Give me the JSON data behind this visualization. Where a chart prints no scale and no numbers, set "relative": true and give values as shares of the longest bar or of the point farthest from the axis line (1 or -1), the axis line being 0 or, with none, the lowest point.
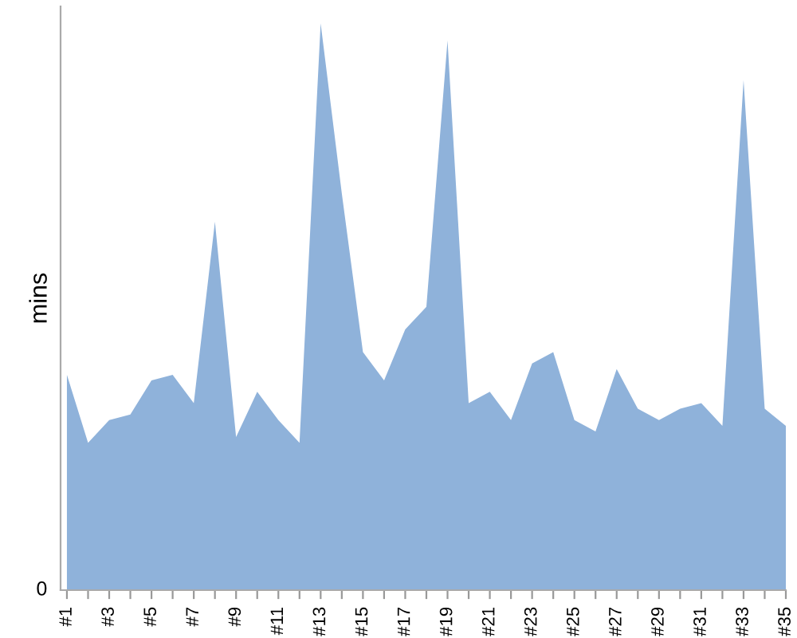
{
  "chart_data": {
    "type": "area",
    "ylabel": "mins",
    "relative": true,
    "color": "#8fb2da",
    "categories": [
      "#1",
      null,
      "#3",
      null,
      "#5",
      null,
      "#7",
      null,
      "#9",
      null,
      "#11",
      null,
      "#13",
      null,
      "#15",
      null,
      "#17",
      null,
      "#19",
      null,
      "#21",
      null,
      "#23",
      null,
      "#25",
      null,
      "#27",
      null,
      "#29",
      null,
      "#31",
      null,
      "#33",
      null,
      "#35"
    ],
    "values": [
      0.38,
      0.26,
      0.3,
      0.31,
      0.37,
      0.38,
      0.33,
      0.65,
      0.27,
      0.35,
      0.3,
      0.26,
      1,
      0.7,
      0.42,
      0.37,
      0.46,
      0.5,
      0.97,
      0.33,
      0.35,
      0.3,
      0.4,
      0.42,
      0.3,
      0.28,
      0.39,
      0.32,
      0.3,
      0.32,
      0.33,
      0.29,
      0.9,
      0.32,
      0.29
    ],
    "annotations": [
      "0"
    ],
    "grid": false,
    "legend": false
  }
}
